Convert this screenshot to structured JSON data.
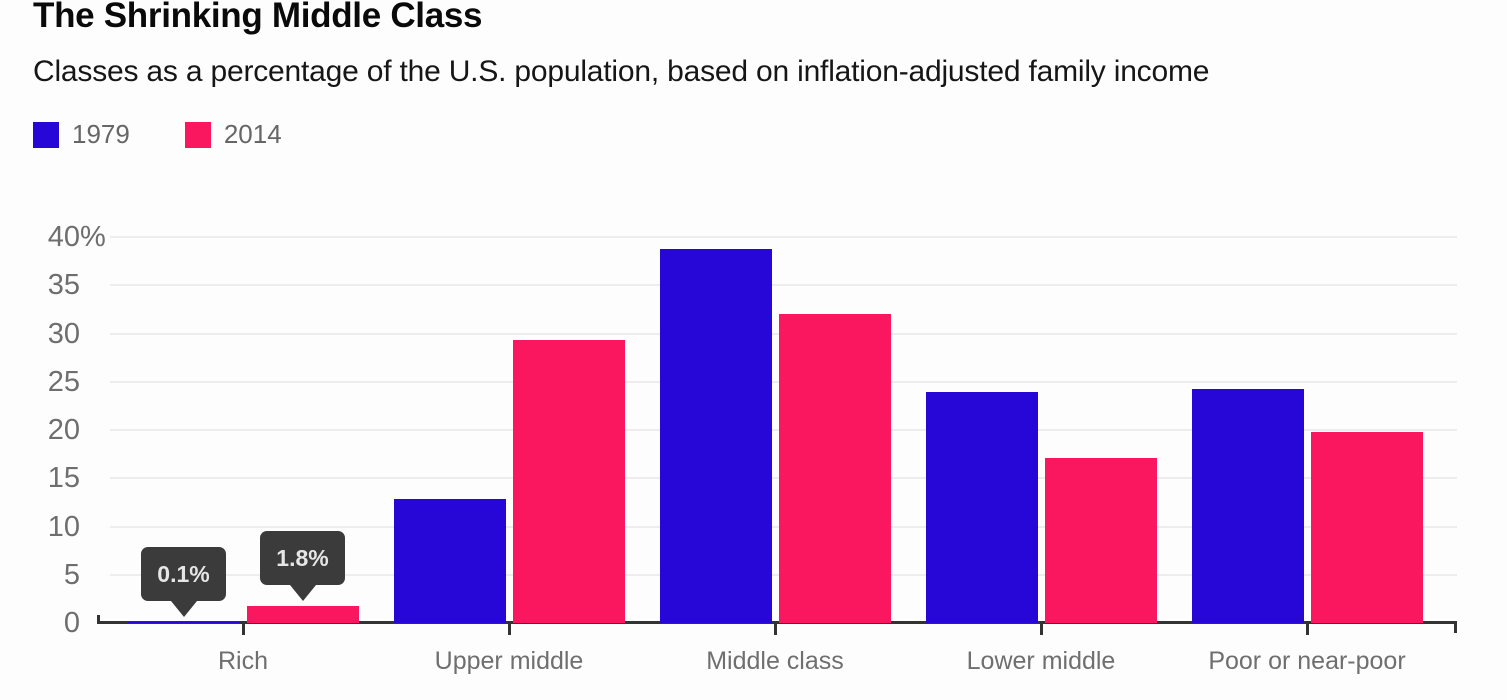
{
  "chart_data": {
    "type": "bar",
    "title": "The Shrinking Middle Class",
    "subtitle": "Classes as a percentage of the U.S. population, based on inflation-adjusted family income",
    "categories": [
      "Rich",
      "Upper middle",
      "Middle class",
      "Lower middle",
      "Poor or near-poor"
    ],
    "series": [
      {
        "name": "1979",
        "color": "#2706d8",
        "values": [
          0.1,
          12.9,
          38.8,
          23.9,
          24.3
        ]
      },
      {
        "name": "2014",
        "color": "#fa1760",
        "values": [
          1.8,
          29.3,
          32.0,
          17.1,
          19.8
        ]
      }
    ],
    "xlabel": "",
    "ylabel": "",
    "ylim": [
      0,
      40
    ],
    "yticks": [
      {
        "label": "40%",
        "value": 40
      },
      {
        "label": "35",
        "value": 35
      },
      {
        "label": "30",
        "value": 30
      },
      {
        "label": "25",
        "value": 25
      },
      {
        "label": "20",
        "value": 20
      },
      {
        "label": "15",
        "value": 15
      },
      {
        "label": "10",
        "value": 10
      },
      {
        "label": "5",
        "value": 5
      },
      {
        "label": "0",
        "value": 0
      }
    ],
    "grid": "horizontal",
    "legend_position": "top-left",
    "annotations": [
      {
        "text": "0.1%",
        "category": "Rich",
        "series": "1979"
      },
      {
        "text": "1.8%",
        "category": "Rich",
        "series": "2014"
      }
    ]
  },
  "colors": {
    "background": "#fdfdfd",
    "title": "#0a0a0a",
    "subtitle": "#161616",
    "legend_label": "#666666",
    "tick_label": "#6e6e6e",
    "category_label": "#6f6f6f",
    "grid": "#ededed",
    "axis": "#333333",
    "tooltip_bg": "#3b3b3b",
    "tooltip_text": "#e6e6e6"
  }
}
